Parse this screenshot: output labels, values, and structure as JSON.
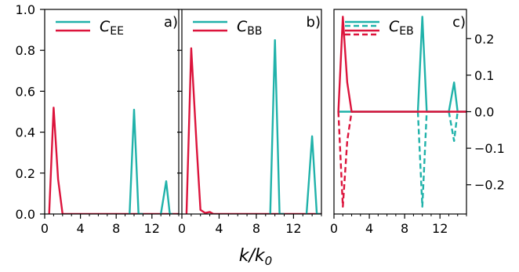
{
  "figure": {
    "xlabel": "k/k",
    "xlabel_sub": "0"
  },
  "colors": {
    "teal": "#20b2aa",
    "crimson": "#dc143c"
  },
  "chart_data": [
    {
      "type": "line",
      "panel_label": "a)",
      "legend": {
        "C": "C",
        "sub": "EE",
        "placement": "top-left"
      },
      "xlim": [
        0,
        15
      ],
      "ylim": [
        0,
        1
      ],
      "xticks": [
        0,
        4,
        8,
        12
      ],
      "yticks": [
        0,
        0.2,
        0.4,
        0.6,
        0.8,
        1
      ],
      "ytick_labels": [
        "0.0",
        "0.2",
        "0.4",
        "0.6",
        "0.8",
        "1.0"
      ],
      "y_axis_side": "left",
      "series": [
        {
          "color": "crimson",
          "style": "solid",
          "x": [
            0.5,
            1,
            1.5,
            2,
            15
          ],
          "y": [
            0,
            0.52,
            0.17,
            0,
            0
          ]
        },
        {
          "color": "teal",
          "style": "solid",
          "x": [
            9.5,
            10,
            10.5,
            11
          ],
          "y": [
            0,
            0.51,
            0,
            0
          ]
        },
        {
          "color": "teal",
          "style": "solid",
          "x": [
            13,
            13.6,
            14,
            14.3
          ],
          "y": [
            0,
            0.16,
            0,
            0
          ]
        }
      ]
    },
    {
      "type": "line",
      "panel_label": "b)",
      "legend": {
        "C": "C",
        "sub": "BB",
        "placement": "top-left"
      },
      "xlim": [
        0,
        15
      ],
      "ylim": [
        0,
        1
      ],
      "xticks": [
        0,
        4,
        8,
        12
      ],
      "yticks": [
        0,
        0.2,
        0.4,
        0.6,
        0.8,
        1
      ],
      "ytick_labels": [
        "",
        "",
        "",
        "",
        "",
        ""
      ],
      "y_axis_side": "left",
      "series": [
        {
          "color": "crimson",
          "style": "solid",
          "x": [
            0.5,
            1,
            1.6,
            2,
            2.5,
            3,
            3.4,
            15
          ],
          "y": [
            0,
            0.81,
            0.32,
            0.02,
            0.005,
            0.01,
            0,
            0
          ]
        },
        {
          "color": "teal",
          "style": "solid",
          "x": [
            9.5,
            10,
            10.5,
            11
          ],
          "y": [
            0,
            0.85,
            0,
            0
          ]
        },
        {
          "color": "teal",
          "style": "solid",
          "x": [
            13.4,
            14,
            14.5,
            14.9
          ],
          "y": [
            0,
            0.38,
            0,
            0
          ]
        }
      ]
    },
    {
      "type": "line",
      "panel_label": "c)",
      "legend": {
        "C": "C",
        "sub": "EB",
        "placement": "top-left"
      },
      "xlim": [
        0,
        15
      ],
      "ylim": [
        -0.28,
        0.28
      ],
      "xticks": [
        0,
        4,
        8,
        12
      ],
      "yticks": [
        -0.2,
        -0.1,
        0,
        0.1,
        0.2
      ],
      "ytick_labels": [
        "−0.2",
        "−0.1",
        "0.0",
        "0.1",
        "0.2"
      ],
      "y_axis_side": "right",
      "series": [
        {
          "color": "teal",
          "style": "solid",
          "x": [
            0.5,
            9.5,
            10,
            10.5,
            13,
            13.6,
            14,
            15
          ],
          "y": [
            0,
            0,
            0.26,
            0,
            0,
            0.08,
            0,
            0
          ]
        },
        {
          "color": "teal",
          "style": "dashed",
          "x": [
            9.5,
            10,
            10.5
          ],
          "y": [
            0,
            -0.26,
            0
          ]
        },
        {
          "color": "teal",
          "style": "dashed",
          "x": [
            13,
            13.6,
            14
          ],
          "y": [
            0,
            -0.08,
            0
          ]
        },
        {
          "color": "crimson",
          "style": "solid",
          "x": [
            0.5,
            1,
            1.5,
            2,
            15
          ],
          "y": [
            0,
            0.26,
            0.08,
            0,
            0
          ]
        },
        {
          "color": "crimson",
          "style": "dashed",
          "x": [
            0.5,
            1,
            1.5,
            2
          ],
          "y": [
            0,
            -0.26,
            -0.08,
            0
          ]
        }
      ]
    }
  ]
}
